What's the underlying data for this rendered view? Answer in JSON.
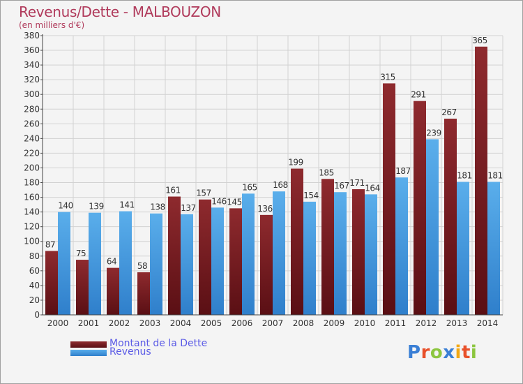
{
  "title": "Revenus/Dette - MALBOUZON",
  "subtitle": "(en milliers d'€)",
  "logo": {
    "text": "Proxiti",
    "letters": [
      {
        "ch": "P",
        "color": "#3a7fd5"
      },
      {
        "ch": "r",
        "color": "#e8502a"
      },
      {
        "ch": "o",
        "color": "#8cc63f"
      },
      {
        "ch": "x",
        "color": "#3a7fd5"
      },
      {
        "ch": "i",
        "color": "#f2a814"
      },
      {
        "ch": "t",
        "color": "#e8502a"
      },
      {
        "ch": "i",
        "color": "#8cc63f"
      }
    ]
  },
  "legend": {
    "items": [
      {
        "label": "Montant de la Dette",
        "color": "#7a1e22"
      },
      {
        "label": "Revenus",
        "color": "#4a9fe2"
      }
    ]
  },
  "chart_data": {
    "type": "bar",
    "categories": [
      "2000",
      "2001",
      "2002",
      "2003",
      "2004",
      "2005",
      "2006",
      "2007",
      "2008",
      "2009",
      "2010",
      "2011",
      "2012",
      "2013",
      "2014"
    ],
    "series": [
      {
        "name": "Montant de la Dette",
        "values": [
          87,
          75,
          64,
          58,
          161,
          157,
          145,
          136,
          199,
          185,
          171,
          315,
          291,
          267,
          365
        ],
        "color": "#7a1e22"
      },
      {
        "name": "Revenus",
        "values": [
          140,
          139,
          141,
          138,
          137,
          146,
          165,
          168,
          154,
          167,
          164,
          187,
          239,
          181,
          181
        ],
        "color": "#4a9fe2"
      }
    ],
    "title": "Revenus/Dette - MALBOUZON",
    "ylabel": "(en milliers d'€)",
    "ylim": [
      0,
      380
    ],
    "yticks": [
      0,
      20,
      40,
      60,
      80,
      100,
      120,
      140,
      160,
      180,
      200,
      220,
      240,
      260,
      280,
      300,
      320,
      340,
      360,
      380
    ],
    "grid": true,
    "legend_position": "bottom-left"
  }
}
